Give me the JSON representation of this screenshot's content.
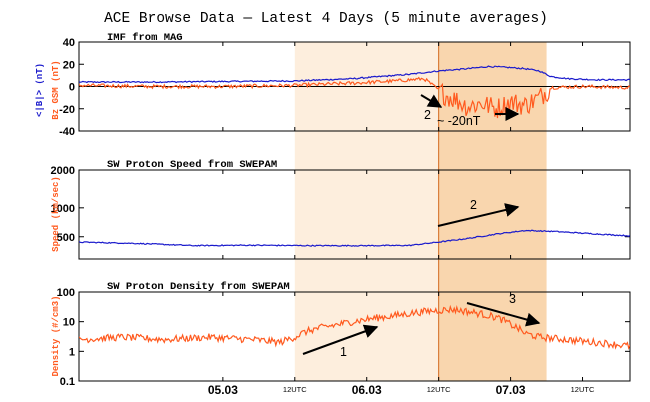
{
  "title": "ACE Browse Data — Latest 4 Days (5 minute averages)",
  "colors": {
    "blue": "#1a1acc",
    "red": "#ff5a1f",
    "shade_light": "#fdeedd",
    "shade_dark": "#f9d6ae",
    "vline": "#d2691e"
  },
  "x_ticks": [
    {
      "label": "05.03",
      "kind": "date",
      "t": 1.0
    },
    {
      "label": "12UTC",
      "kind": "utc",
      "t": 1.5
    },
    {
      "label": "06.03",
      "kind": "date",
      "t": 2.0
    },
    {
      "label": "12UTC",
      "kind": "utc",
      "t": 2.5
    },
    {
      "label": "07.03",
      "kind": "date",
      "t": 3.0
    },
    {
      "label": "12UTC",
      "kind": "utc",
      "t": 3.5
    }
  ],
  "chart_data": [
    {
      "type": "line",
      "panel_title": "IMF from MAG",
      "ylabel_top": "<|B|> (nT)",
      "ylabel_bottom": "Bz GSM (nT)",
      "ylim": [
        -40,
        40
      ],
      "yticks": [
        40,
        20,
        0,
        -20,
        -40
      ],
      "xlim_days": [
        0,
        3.83
      ],
      "shading": {
        "light": [
          1.5,
          3.25
        ],
        "dark": [
          2.5,
          3.25
        ]
      },
      "vline_day": 2.5,
      "series": [
        {
          "name": "<|B|>",
          "color": "#1a1acc",
          "points": [
            [
              0,
              4
            ],
            [
              0.5,
              4
            ],
            [
              1.0,
              4.5
            ],
            [
              1.5,
              5
            ],
            [
              1.9,
              7
            ],
            [
              2.1,
              9
            ],
            [
              2.3,
              11
            ],
            [
              2.5,
              14
            ],
            [
              2.7,
              16
            ],
            [
              2.85,
              18
            ],
            [
              3.0,
              17
            ],
            [
              3.1,
              16
            ],
            [
              3.2,
              14
            ],
            [
              3.28,
              9
            ],
            [
              3.4,
              7
            ],
            [
              3.6,
              6
            ],
            [
              3.83,
              6
            ]
          ]
        },
        {
          "name": "Bz GSM",
          "color": "#ff5a1f",
          "points": [
            [
              0,
              1
            ],
            [
              0.5,
              0
            ],
            [
              1.0,
              0
            ],
            [
              1.5,
              1
            ],
            [
              1.9,
              3
            ],
            [
              2.2,
              5
            ],
            [
              2.4,
              7
            ],
            [
              2.55,
              -8
            ],
            [
              2.62,
              -12
            ],
            [
              2.7,
              -18
            ],
            [
              2.8,
              -15
            ],
            [
              2.9,
              -20
            ],
            [
              3.0,
              -14
            ],
            [
              3.1,
              -17
            ],
            [
              3.2,
              -10
            ],
            [
              3.28,
              -1
            ],
            [
              3.5,
              0
            ],
            [
              3.83,
              -1
            ]
          ]
        }
      ],
      "annotations": [
        {
          "label": "2",
          "text": "~ -20nT"
        }
      ]
    },
    {
      "type": "line",
      "panel_title": "SW Proton Speed from SWEPAM",
      "ylabel": "Speed (km/sec)",
      "ylim": [
        0,
        2000
      ],
      "yticks": [
        2000,
        1000,
        500
      ],
      "ytick_positions": [
        2000,
        1150,
        500
      ],
      "xlim_days": [
        0,
        3.83
      ],
      "series": [
        {
          "name": "Speed",
          "color": "#1a1acc",
          "points": [
            [
              0,
              380
            ],
            [
              0.4,
              350
            ],
            [
              0.8,
              300
            ],
            [
              1.2,
              310
            ],
            [
              1.6,
              300
            ],
            [
              2.0,
              300
            ],
            [
              2.3,
              305
            ],
            [
              2.5,
              380
            ],
            [
              2.7,
              460
            ],
            [
              2.9,
              560
            ],
            [
              3.1,
              640
            ],
            [
              3.3,
              620
            ],
            [
              3.5,
              580
            ],
            [
              3.83,
              520
            ]
          ]
        }
      ],
      "annotations": [
        {
          "label": "2"
        }
      ]
    },
    {
      "type": "line",
      "panel_title": "SW Proton Density from SWEPAM",
      "ylabel": "Density (#/cm3)",
      "yscale": "log",
      "ylim": [
        0.1,
        100
      ],
      "yticks": [
        100,
        10,
        1,
        0.1
      ],
      "xlim_days": [
        0,
        3.83
      ],
      "series": [
        {
          "name": "Density",
          "color": "#ff5a1f",
          "points": [
            [
              0,
              2.5
            ],
            [
              0.3,
              3
            ],
            [
              0.6,
              2.5
            ],
            [
              0.9,
              3
            ],
            [
              1.2,
              2.5
            ],
            [
              1.4,
              2
            ],
            [
              1.5,
              3
            ],
            [
              1.6,
              5
            ],
            [
              1.8,
              8
            ],
            [
              2.0,
              12
            ],
            [
              2.2,
              16
            ],
            [
              2.4,
              22
            ],
            [
              2.6,
              26
            ],
            [
              2.75,
              20
            ],
            [
              2.9,
              14
            ],
            [
              3.0,
              8
            ],
            [
              3.1,
              4
            ],
            [
              3.2,
              3
            ],
            [
              3.5,
              2.2
            ],
            [
              3.83,
              1.5
            ]
          ]
        }
      ],
      "annotations": [
        {
          "label": "1"
        },
        {
          "label": "3"
        }
      ]
    }
  ]
}
